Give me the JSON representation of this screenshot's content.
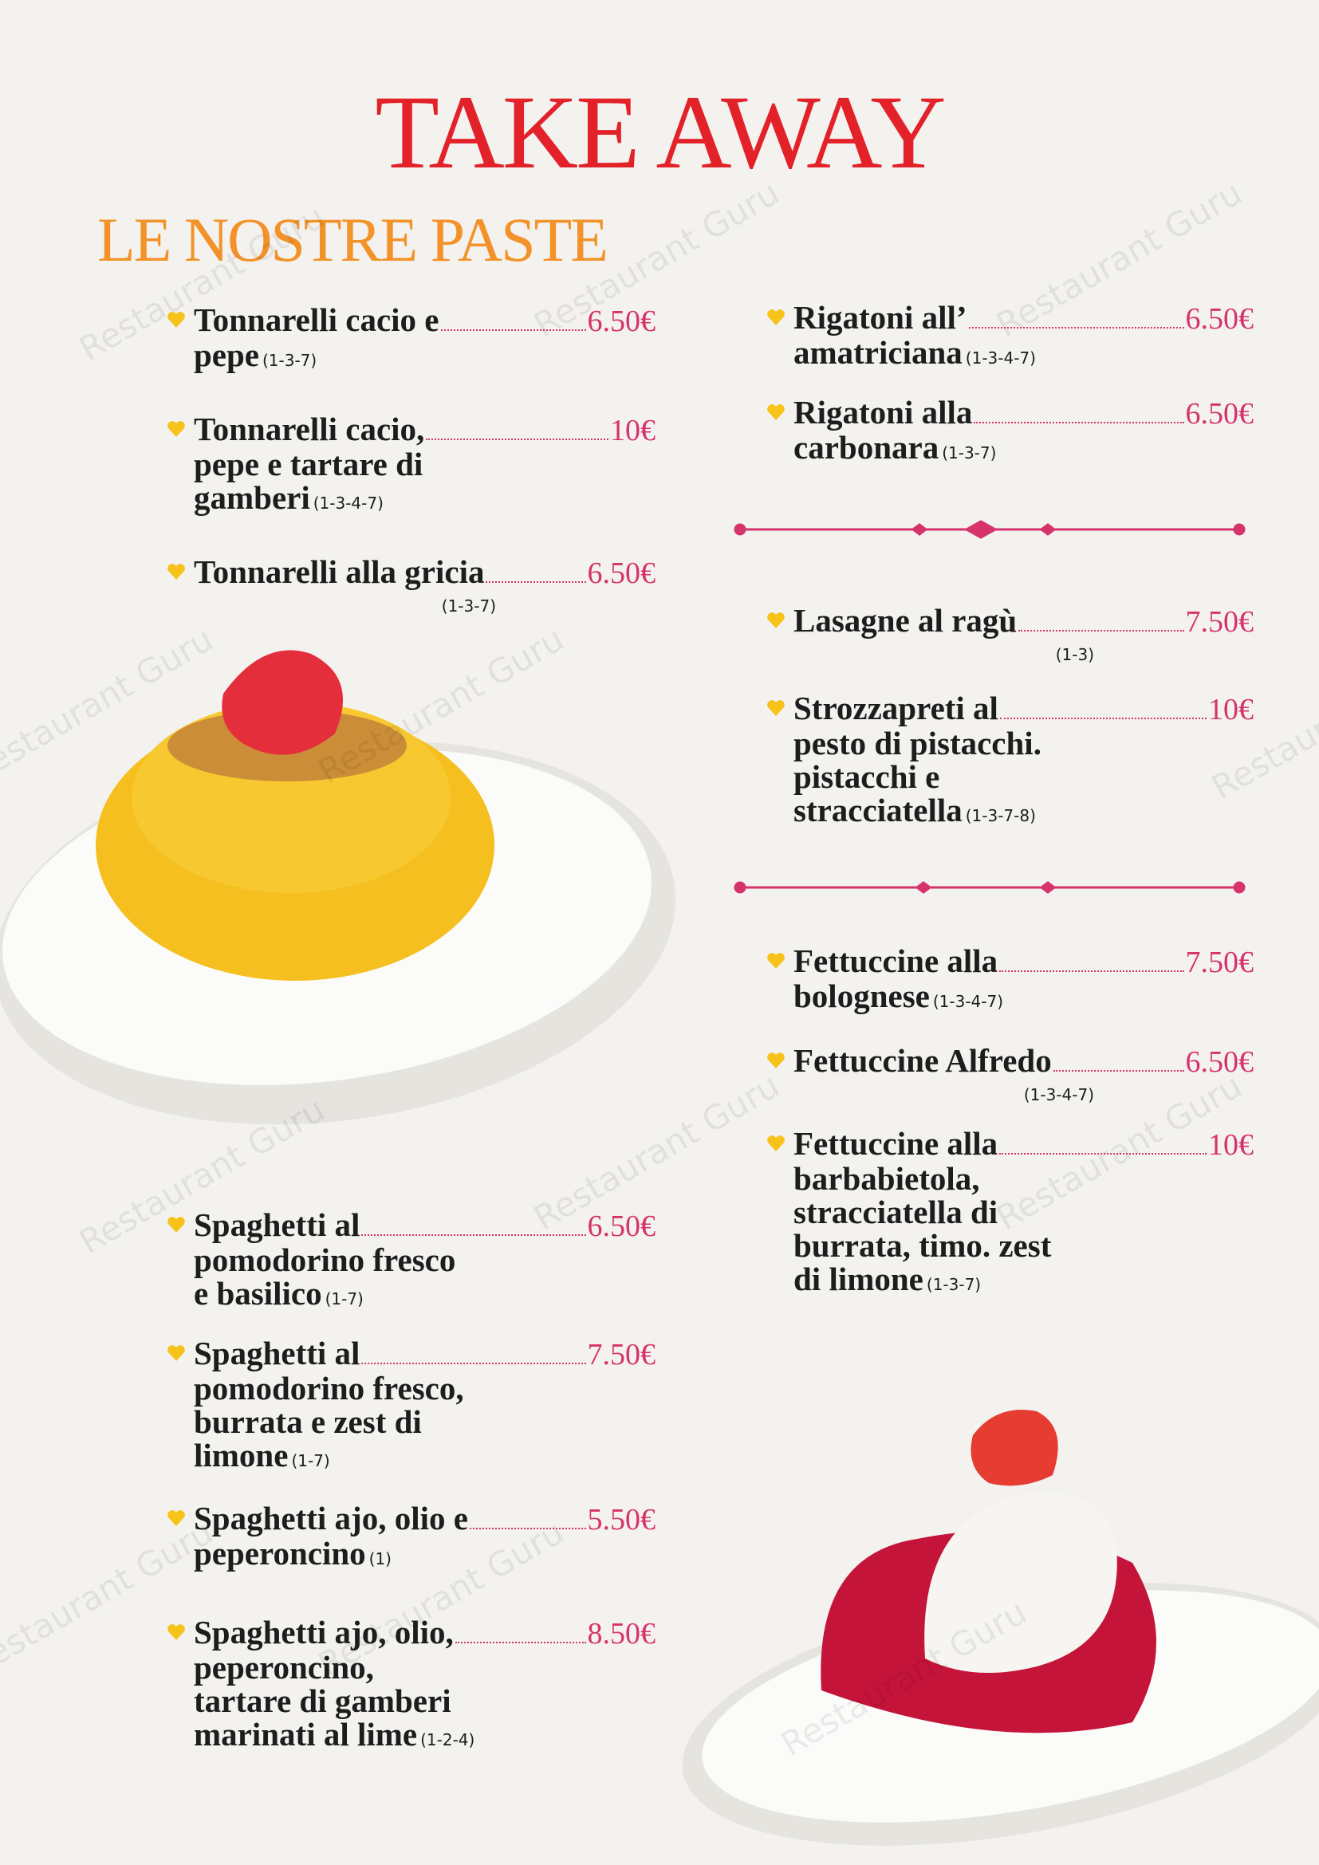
{
  "header": {
    "title": "TAKE AWAY",
    "subtitle": "LE NOSTRE PASTE"
  },
  "watermark": "Restaurant Guru",
  "left": [
    {
      "lines": [
        "Tonnarelli cacio e",
        "pepe"
      ],
      "allergens": "(1-3-7)",
      "price": "6.50€"
    },
    {
      "lines": [
        "Tonnarelli cacio,",
        "pepe e tartare di",
        "gamberi"
      ],
      "allergens": "(1-3-4-7)",
      "price": "10€"
    },
    {
      "lines": [
        "Tonnarelli alla gricia"
      ],
      "allergens": "(1-3-7)",
      "price": "6.50€"
    },
    {
      "lines": [
        "Spaghetti al",
        "pomodorino fresco",
        "e basilico"
      ],
      "allergens": "(1-7)",
      "price": "6.50€"
    },
    {
      "lines": [
        "Spaghetti al",
        "pomodorino fresco,",
        "burrata e  zest di",
        "limone"
      ],
      "allergens": "(1-7)",
      "price": "7.50€"
    },
    {
      "lines": [
        "Spaghetti ajo, olio e",
        "peperoncino"
      ],
      "allergens": "(1)",
      "price": "5.50€"
    },
    {
      "lines": [
        "Spaghetti ajo, olio,",
        "peperoncino,",
        "tartare di gamberi",
        "marinati al lime"
      ],
      "allergens": "(1-2-4)",
      "price": "8.50€"
    }
  ],
  "right": [
    {
      "lines": [
        "Rigatoni all’",
        "amatriciana"
      ],
      "allergens": "(1-3-4-7)",
      "price": "6.50€"
    },
    {
      "lines": [
        "Rigatoni alla",
        "carbonara"
      ],
      "allergens": "(1-3-7)",
      "price": "6.50€"
    },
    {
      "lines": [
        "Lasagne al ragù"
      ],
      "allergens": "(1-3)",
      "price": "7.50€"
    },
    {
      "lines": [
        "Strozzapreti al",
        "pesto di pistacchi.",
        "pistacchi e",
        "stracciatella"
      ],
      "allergens": "(1-3-7-8)",
      "price": "10€"
    },
    {
      "lines": [
        "Fettuccine alla",
        "bolognese"
      ],
      "allergens": "(1-3-4-7)",
      "price": "7.50€"
    },
    {
      "lines": [
        "Fettuccine Alfredo"
      ],
      "allergens": "(1-3-4-7)",
      "price": "6.50€"
    },
    {
      "lines": [
        "Fettuccine alla",
        "barbabietola,",
        "stracciatella di",
        "burrata, timo. zest",
        "di limone"
      ],
      "allergens": "(1-3-7)",
      "price": "10€"
    }
  ]
}
